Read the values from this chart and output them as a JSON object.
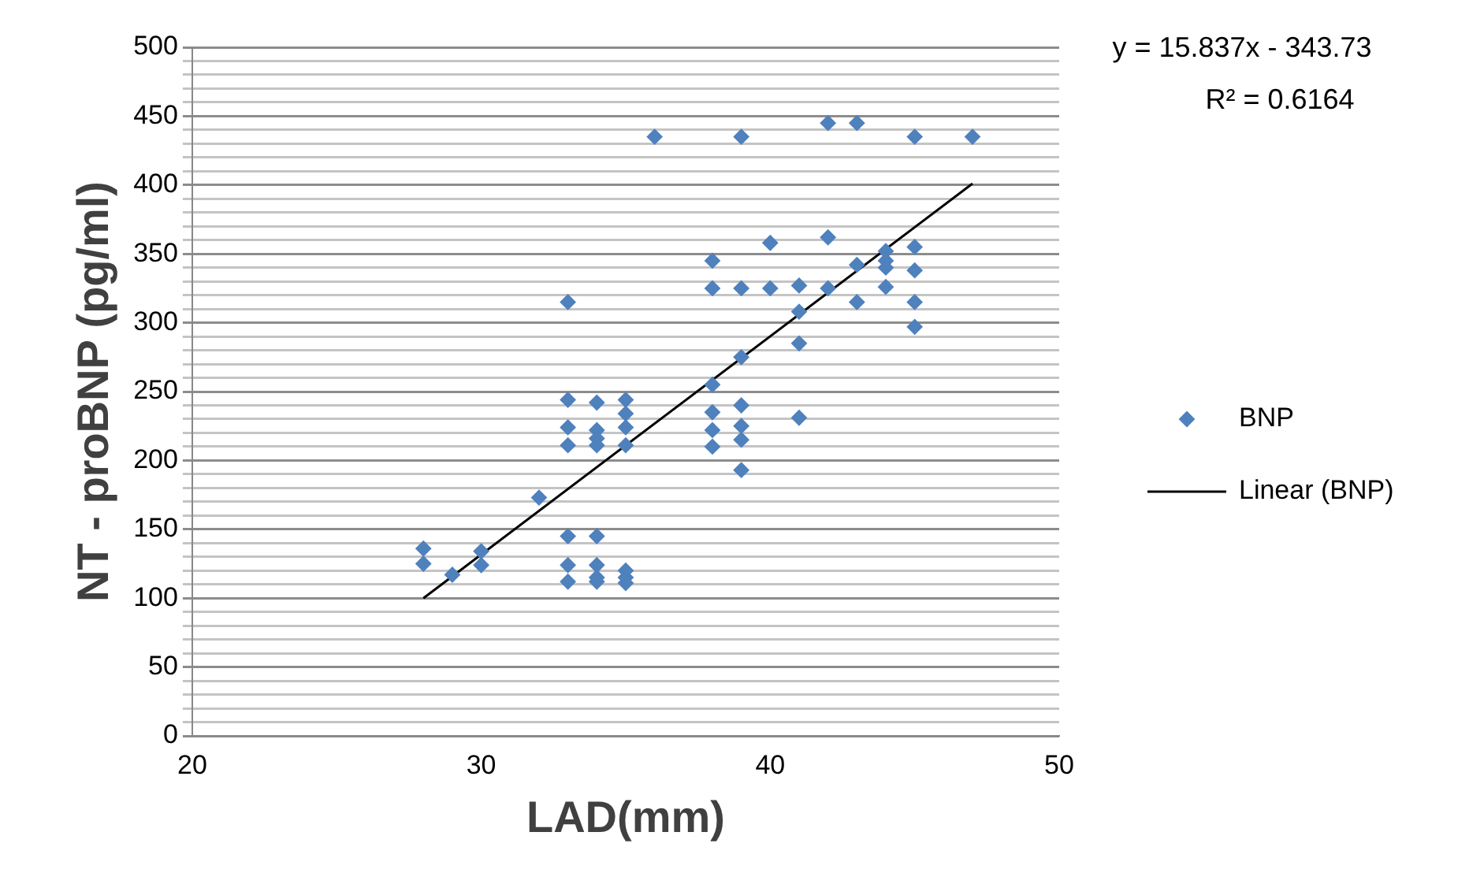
{
  "chart_data": {
    "type": "scatter",
    "xlabel": "LAD(mm)",
    "ylabel": "NT - proBNP (pg/ml)",
    "xlim": [
      20,
      50
    ],
    "xticks": [
      20,
      30,
      40,
      50
    ],
    "ylim": [
      0,
      500
    ],
    "yticks": [
      0,
      {
        "value": 10,
        "label": null
      },
      {
        "value": 20,
        "label": null
      },
      {
        "value": 30,
        "label": null
      },
      {
        "value": 40,
        "label": null
      },
      50,
      {
        "value": 60,
        "label": null
      },
      {
        "value": 70,
        "label": null
      },
      {
        "value": 80,
        "label": null
      },
      {
        "value": 90,
        "label": null
      },
      100,
      {
        "value": 110,
        "label": null
      },
      {
        "value": 120,
        "label": null
      },
      {
        "value": 130,
        "label": null
      },
      {
        "value": 140,
        "label": null
      },
      150,
      {
        "value": 160,
        "label": null
      },
      {
        "value": 170,
        "label": null
      },
      {
        "value": 180,
        "label": null
      },
      {
        "value": 190,
        "label": null
      },
      200,
      {
        "value": 210,
        "label": null
      },
      {
        "value": 220,
        "label": null
      },
      {
        "value": 230,
        "label": null
      },
      {
        "value": 240,
        "label": null
      },
      250,
      {
        "value": 260,
        "label": null
      },
      {
        "value": 270,
        "label": null
      },
      {
        "value": 280,
        "label": null
      },
      {
        "value": 290,
        "label": null
      },
      300,
      {
        "value": 310,
        "label": null
      },
      {
        "value": 320,
        "label": null
      },
      {
        "value": 330,
        "label": null
      },
      {
        "value": 340,
        "label": null
      },
      350,
      {
        "value": 360,
        "label": null
      },
      {
        "value": 370,
        "label": null
      },
      {
        "value": 380,
        "label": null
      },
      {
        "value": 390,
        "label": null
      },
      400,
      {
        "value": 410,
        "label": null
      },
      {
        "value": 420,
        "label": null
      },
      {
        "value": 430,
        "label": null
      },
      {
        "value": 440,
        "label": null
      },
      450,
      {
        "value": 460,
        "label": null
      },
      {
        "value": 470,
        "label": null
      },
      {
        "value": 480,
        "label": null
      },
      {
        "value": 490,
        "label": null
      },
      500
    ],
    "grid": "y",
    "legend": "right",
    "annotations": [
      "y = 15.837x - 343.73",
      "R² = 0.6164"
    ],
    "series": [
      {
        "name": "BNP",
        "type": "scatter",
        "marker": "diamond",
        "color": "#4f81bd",
        "x": [
          28,
          28,
          29,
          30,
          30,
          32,
          33,
          33,
          33,
          33,
          33,
          33,
          33,
          34,
          34,
          34,
          34,
          34,
          34,
          34,
          34,
          35,
          35,
          35,
          35,
          35,
          35,
          35,
          36,
          38,
          38,
          38,
          38,
          38,
          38,
          39,
          39,
          39,
          39,
          39,
          39,
          39,
          40,
          40,
          41,
          41,
          41,
          41,
          42,
          42,
          42,
          43,
          43,
          43,
          44,
          44,
          44,
          44,
          45,
          45,
          45,
          45,
          45,
          47
        ],
        "values": [
          136,
          125,
          117,
          134,
          124,
          173,
          315,
          244,
          224,
          211,
          145,
          124,
          112,
          242,
          222,
          216,
          211,
          145,
          124,
          115,
          112,
          244,
          234,
          224,
          211,
          120,
          115,
          111,
          435,
          345,
          325,
          255,
          235,
          222,
          210,
          435,
          325,
          275,
          240,
          225,
          215,
          193,
          358,
          325,
          327,
          308,
          285,
          231,
          445,
          362,
          325,
          445,
          342,
          315,
          352,
          345,
          340,
          326,
          435,
          355,
          338,
          315,
          297,
          435
        ]
      },
      {
        "name": "Linear (BNP)",
        "type": "line",
        "color": "#000000",
        "x": [
          28,
          47
        ],
        "values": [
          100,
          401
        ]
      }
    ]
  }
}
